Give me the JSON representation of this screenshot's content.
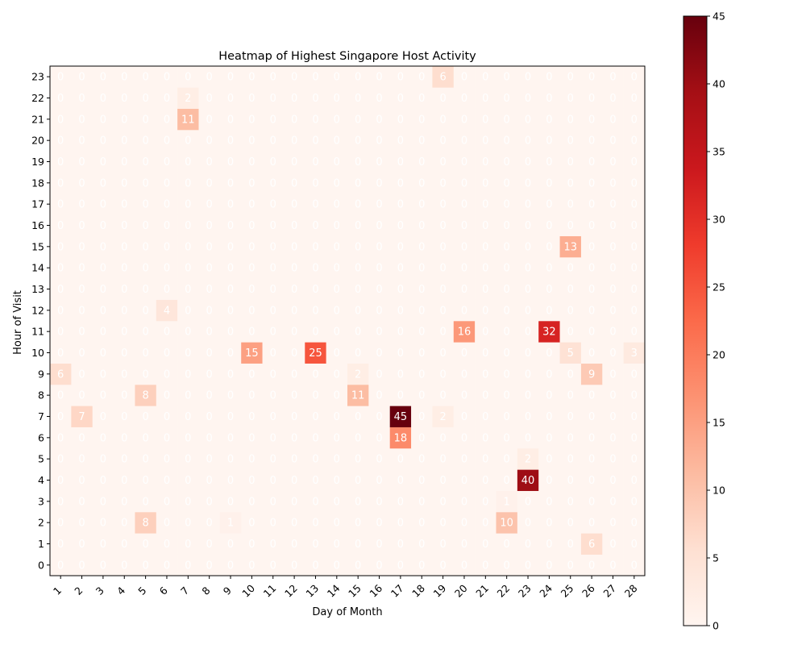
{
  "chart_data": {
    "type": "heatmap",
    "title": "Heatmap of Highest Singapore Host Activity",
    "xlabel": "Day of Month",
    "ylabel": "Hour of Visit",
    "x_categories": [
      1,
      2,
      3,
      4,
      5,
      6,
      7,
      8,
      9,
      10,
      11,
      12,
      13,
      14,
      15,
      16,
      17,
      18,
      19,
      20,
      21,
      22,
      23,
      24,
      25,
      26,
      27,
      28
    ],
    "y_categories": [
      0,
      1,
      2,
      3,
      4,
      5,
      6,
      7,
      8,
      9,
      10,
      11,
      12,
      13,
      14,
      15,
      16,
      17,
      18,
      19,
      20,
      21,
      22,
      23
    ],
    "colormap": "Reds",
    "vmin": 0,
    "vmax": 45,
    "colorbar_ticks": [
      0,
      5,
      10,
      15,
      20,
      25,
      30,
      35,
      40,
      45
    ],
    "cells": [
      {
        "day": 19,
        "hour": 23,
        "value": 6
      },
      {
        "day": 7,
        "hour": 22,
        "value": 2
      },
      {
        "day": 7,
        "hour": 21,
        "value": 11
      },
      {
        "day": 25,
        "hour": 15,
        "value": 13
      },
      {
        "day": 6,
        "hour": 12,
        "value": 4
      },
      {
        "day": 20,
        "hour": 11,
        "value": 16
      },
      {
        "day": 24,
        "hour": 11,
        "value": 32
      },
      {
        "day": 10,
        "hour": 10,
        "value": 15
      },
      {
        "day": 13,
        "hour": 10,
        "value": 25
      },
      {
        "day": 25,
        "hour": 10,
        "value": 5
      },
      {
        "day": 28,
        "hour": 10,
        "value": 3
      },
      {
        "day": 1,
        "hour": 9,
        "value": 6
      },
      {
        "day": 15,
        "hour": 9,
        "value": 2
      },
      {
        "day": 26,
        "hour": 9,
        "value": 9
      },
      {
        "day": 5,
        "hour": 8,
        "value": 8
      },
      {
        "day": 15,
        "hour": 8,
        "value": 11
      },
      {
        "day": 2,
        "hour": 7,
        "value": 7
      },
      {
        "day": 17,
        "hour": 7,
        "value": 45
      },
      {
        "day": 19,
        "hour": 7,
        "value": 2
      },
      {
        "day": 17,
        "hour": 6,
        "value": 18
      },
      {
        "day": 23,
        "hour": 5,
        "value": 2
      },
      {
        "day": 23,
        "hour": 4,
        "value": 40
      },
      {
        "day": 22,
        "hour": 3,
        "value": 1
      },
      {
        "day": 5,
        "hour": 2,
        "value": 8
      },
      {
        "day": 9,
        "hour": 2,
        "value": 1
      },
      {
        "day": 22,
        "hour": 2,
        "value": 10
      },
      {
        "day": 26,
        "hour": 1,
        "value": 6
      }
    ],
    "default_value": 0
  }
}
